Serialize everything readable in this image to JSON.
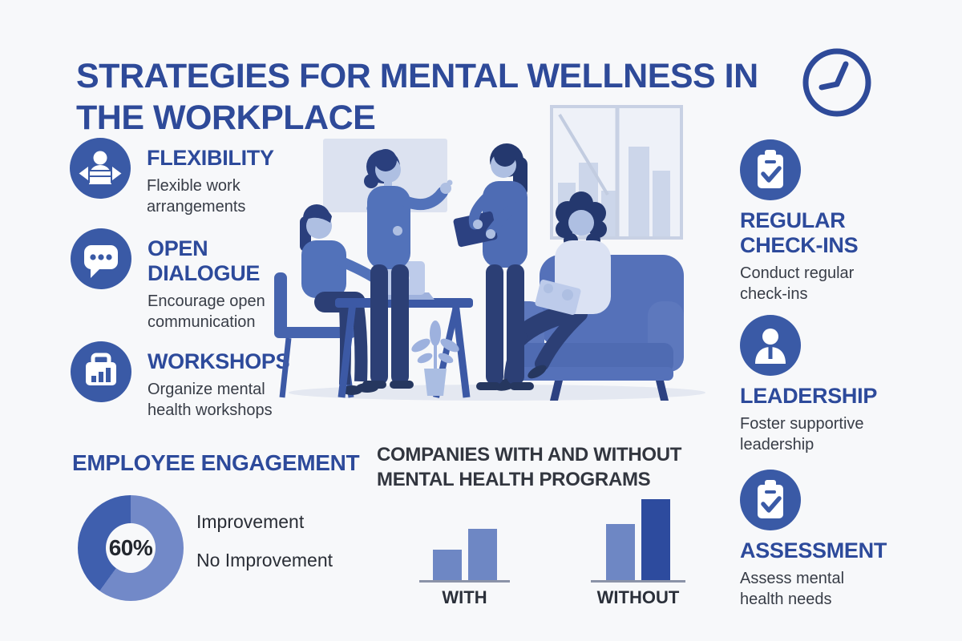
{
  "title": "STRATEGIES FOR MENTAL WELLNESS IN THE WORKPLACE",
  "header_icon": "clock",
  "colors": {
    "background": "#f7f8fa",
    "primary_blue": "#2d4a9b",
    "icon_circle_blue": "#3a5aa6",
    "body_text": "#383d47",
    "chart_heading": "#32363f",
    "donut_light": "#7289c8",
    "donut_dark": "#3f5fae",
    "bar_light": "#6e87c4",
    "bar_dark": "#2d4b9e"
  },
  "left_features": [
    {
      "icon": "person-flex-arrows",
      "title": "FLEXIBILITY",
      "description": "Flexible work arrangements"
    },
    {
      "icon": "speech-bubble",
      "title": "OPEN DIALOGUE",
      "description": "Encourage open communication"
    },
    {
      "icon": "workshop-chart-board",
      "title": "WORKSHOPS",
      "description": "Organize mental health workshops"
    }
  ],
  "right_features": [
    {
      "icon": "clipboard-check",
      "title": "REGULAR CHECK-INS",
      "description": "Conduct regular check-ins"
    },
    {
      "icon": "person-bust",
      "title": "LEADERSHIP",
      "description": "Foster supportive leadership"
    },
    {
      "icon": "clipboard-check",
      "title": "ASSESSMENT",
      "description": "Assess mental health needs"
    }
  ],
  "chart_data": [
    {
      "type": "pie",
      "style": "donut",
      "title": "EMPLOYEE ENGAGEMENT",
      "center_label": "60%",
      "slices": [
        {
          "label": "Improvement",
          "value": 60,
          "color": "#7289c8"
        },
        {
          "label": "No Improvement",
          "value": 40,
          "color": "#3f5fae"
        }
      ],
      "legend_position": "right"
    },
    {
      "type": "bar",
      "title": "COMPANIES WITH AND WITHOUT MENTAL HEALTH PROGRAMS",
      "categories": [
        "WITH",
        "WITHOUT"
      ],
      "value_note": "no numeric axis shown; values are relative bar heights",
      "groups": [
        {
          "label": "WITH",
          "bars": [
            {
              "value": 38,
              "color": "#6e87c4"
            },
            {
              "value": 64,
              "color": "#6e87c4"
            }
          ]
        },
        {
          "label": "WITHOUT",
          "bars": [
            {
              "value": 70,
              "color": "#6e87c4"
            },
            {
              "value": 101,
              "color": "#2d4b9e"
            }
          ]
        }
      ]
    }
  ],
  "illustration": {
    "description": "Four women in an office meeting: one seated at a table with a laptop, one standing and gesturing, one standing holding a tablet, one seated on a blue sofa; whiteboard and city window behind, potted plant under the table"
  }
}
